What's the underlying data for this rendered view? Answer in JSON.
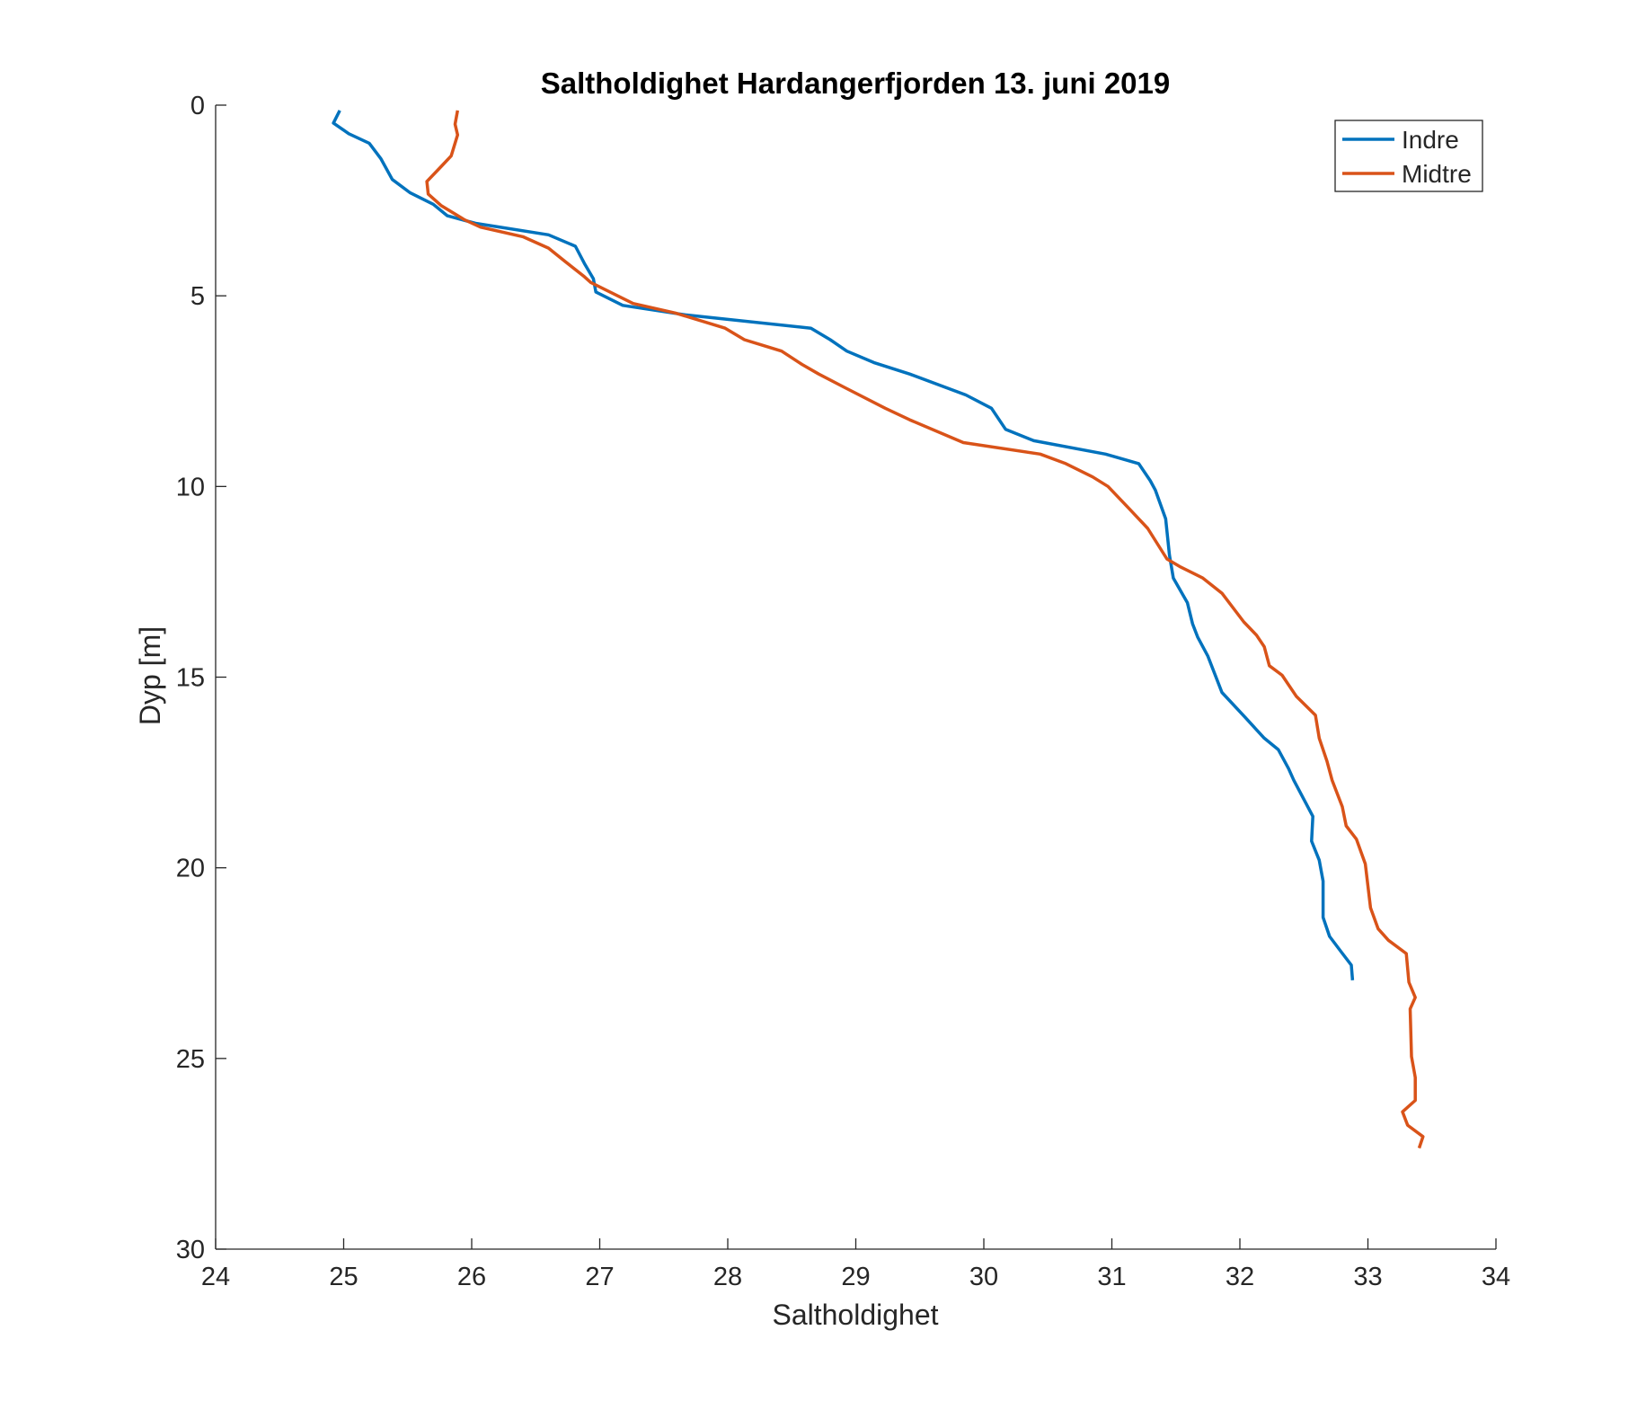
{
  "chart_data": {
    "type": "line",
    "title": "Saltholdighet Hardangerfjorden 13. juni 2019",
    "xlabel": "Saltholdighet",
    "ylabel": "Dyp [m]",
    "xlim": [
      24,
      34
    ],
    "ylim": [
      0,
      30
    ],
    "y_reversed": true,
    "grid": false,
    "xticks": [
      "24",
      "25",
      "26",
      "27",
      "28",
      "29",
      "30",
      "31",
      "32",
      "33",
      "34"
    ],
    "yticks": [
      "0",
      "5",
      "10",
      "15",
      "20",
      "25",
      "30"
    ],
    "legend_position": "top-right",
    "series": [
      {
        "name": "Indre",
        "color": "#0072BD",
        "points": [
          [
            24.97,
            0.14
          ],
          [
            24.92,
            0.47
          ],
          [
            25.04,
            0.75
          ],
          [
            25.2,
            1.0
          ],
          [
            25.29,
            1.4
          ],
          [
            25.38,
            1.95
          ],
          [
            25.52,
            2.3
          ],
          [
            25.7,
            2.6
          ],
          [
            25.81,
            2.9
          ],
          [
            26.03,
            3.1
          ],
          [
            26.6,
            3.4
          ],
          [
            26.81,
            3.7
          ],
          [
            26.88,
            4.15
          ],
          [
            26.95,
            4.55
          ],
          [
            26.97,
            4.9
          ],
          [
            27.18,
            5.25
          ],
          [
            27.67,
            5.5
          ],
          [
            28.65,
            5.85
          ],
          [
            28.8,
            6.15
          ],
          [
            28.93,
            6.45
          ],
          [
            29.14,
            6.75
          ],
          [
            29.42,
            7.05
          ],
          [
            29.86,
            7.6
          ],
          [
            30.06,
            7.95
          ],
          [
            30.17,
            8.5
          ],
          [
            30.39,
            8.8
          ],
          [
            30.95,
            9.15
          ],
          [
            31.21,
            9.4
          ],
          [
            31.3,
            9.85
          ],
          [
            31.34,
            10.1
          ],
          [
            31.42,
            10.85
          ],
          [
            31.45,
            11.8
          ],
          [
            31.48,
            12.4
          ],
          [
            31.59,
            13.05
          ],
          [
            31.63,
            13.6
          ],
          [
            31.67,
            13.95
          ],
          [
            31.75,
            14.45
          ],
          [
            31.86,
            15.4
          ],
          [
            32.04,
            16.05
          ],
          [
            32.19,
            16.6
          ],
          [
            32.3,
            16.9
          ],
          [
            32.38,
            17.4
          ],
          [
            32.42,
            17.7
          ],
          [
            32.57,
            18.65
          ],
          [
            32.56,
            19.3
          ],
          [
            32.62,
            19.8
          ],
          [
            32.65,
            20.35
          ],
          [
            32.65,
            21.3
          ],
          [
            32.7,
            21.8
          ],
          [
            32.79,
            22.2
          ],
          [
            32.87,
            22.55
          ],
          [
            32.88,
            22.95
          ]
        ]
      },
      {
        "name": "Midtre",
        "color": "#D95319",
        "points": [
          [
            25.89,
            0.14
          ],
          [
            25.87,
            0.5
          ],
          [
            25.89,
            0.78
          ],
          [
            25.84,
            1.33
          ],
          [
            25.75,
            1.65
          ],
          [
            25.65,
            2.0
          ],
          [
            25.66,
            2.33
          ],
          [
            25.76,
            2.63
          ],
          [
            25.94,
            3.0
          ],
          [
            26.07,
            3.2
          ],
          [
            26.4,
            3.45
          ],
          [
            26.6,
            3.75
          ],
          [
            26.73,
            4.1
          ],
          [
            26.88,
            4.5
          ],
          [
            26.93,
            4.65
          ],
          [
            27.26,
            5.2
          ],
          [
            27.59,
            5.45
          ],
          [
            27.98,
            5.85
          ],
          [
            28.13,
            6.15
          ],
          [
            28.42,
            6.45
          ],
          [
            28.58,
            6.8
          ],
          [
            28.71,
            7.05
          ],
          [
            28.91,
            7.4
          ],
          [
            29.23,
            7.95
          ],
          [
            29.42,
            8.25
          ],
          [
            29.84,
            8.85
          ],
          [
            30.44,
            9.15
          ],
          [
            30.64,
            9.4
          ],
          [
            30.85,
            9.75
          ],
          [
            30.97,
            10.0
          ],
          [
            31.14,
            10.6
          ],
          [
            31.28,
            11.1
          ],
          [
            31.43,
            11.9
          ],
          [
            31.53,
            12.1
          ],
          [
            31.71,
            12.4
          ],
          [
            31.86,
            12.8
          ],
          [
            32.03,
            13.55
          ],
          [
            32.13,
            13.9
          ],
          [
            32.19,
            14.2
          ],
          [
            32.23,
            14.7
          ],
          [
            32.33,
            14.95
          ],
          [
            32.44,
            15.5
          ],
          [
            32.59,
            16.0
          ],
          [
            32.62,
            16.6
          ],
          [
            32.68,
            17.2
          ],
          [
            32.72,
            17.7
          ],
          [
            32.8,
            18.4
          ],
          [
            32.83,
            18.9
          ],
          [
            32.91,
            19.25
          ],
          [
            32.98,
            19.9
          ],
          [
            33.02,
            21.05
          ],
          [
            33.08,
            21.6
          ],
          [
            33.16,
            21.9
          ],
          [
            33.3,
            22.25
          ],
          [
            33.32,
            23.0
          ],
          [
            33.37,
            23.4
          ],
          [
            33.33,
            23.7
          ],
          [
            33.34,
            24.95
          ],
          [
            33.37,
            25.5
          ],
          [
            33.37,
            26.1
          ],
          [
            33.27,
            26.4
          ],
          [
            33.31,
            26.75
          ],
          [
            33.43,
            27.05
          ],
          [
            33.4,
            27.35
          ]
        ]
      }
    ]
  }
}
